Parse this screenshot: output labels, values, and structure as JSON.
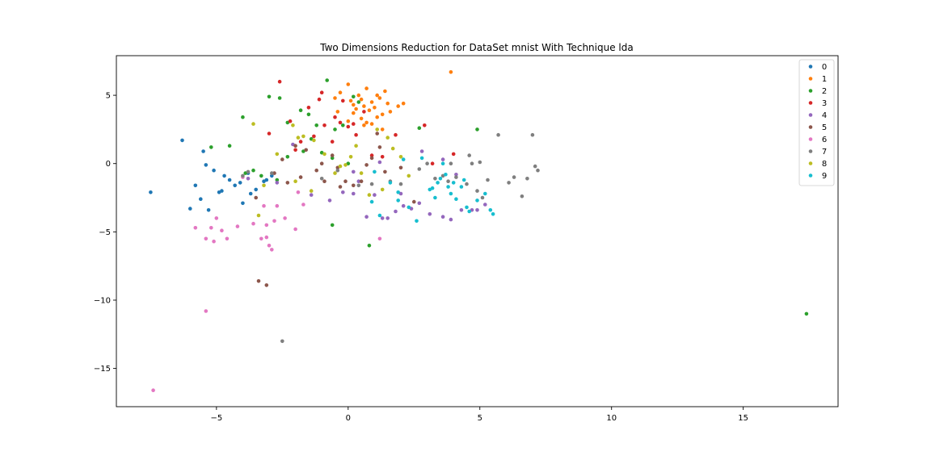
{
  "chart_data": {
    "type": "scatter",
    "title": "Two Dimensions Reduction for DataSet mnist With Technique lda",
    "xlabel": "",
    "ylabel": "",
    "xlim": [
      -8.8,
      18.6
    ],
    "ylim": [
      -17.8,
      7.9
    ],
    "xticks": [
      -5,
      0,
      5,
      10,
      15
    ],
    "yticks": [
      5,
      0,
      -5,
      -10,
      -15
    ],
    "xtick_labels": [
      "−5",
      "0",
      "5",
      "10",
      "15"
    ],
    "ytick_labels": [
      "5",
      "0",
      "−5",
      "−10",
      "−15"
    ],
    "grid": false,
    "legend_position": "top-right",
    "series": [
      {
        "name": "0",
        "color": "#1f77b4",
        "points": [
          [
            -7.5,
            -2.1
          ],
          [
            -6.3,
            1.7
          ],
          [
            -6.0,
            -3.3
          ],
          [
            -5.8,
            -1.6
          ],
          [
            -5.5,
            0.9
          ],
          [
            -5.4,
            -0.1
          ],
          [
            -5.3,
            -3.4
          ],
          [
            -5.1,
            -0.5
          ],
          [
            -4.9,
            -2.1
          ],
          [
            -4.8,
            -2.0
          ],
          [
            -4.7,
            -0.9
          ],
          [
            -4.5,
            -1.2
          ],
          [
            -4.3,
            -1.6
          ],
          [
            -4.1,
            -1.4
          ],
          [
            -4.0,
            -2.9
          ],
          [
            -3.8,
            -0.7
          ],
          [
            -3.7,
            -2.2
          ],
          [
            -3.5,
            -1.9
          ],
          [
            -3.2,
            -1.3
          ],
          [
            -3.1,
            -1.2
          ],
          [
            -2.9,
            -0.9
          ],
          [
            -5.6,
            -2.6
          ]
        ]
      },
      {
        "name": "1",
        "color": "#ff7f0e",
        "points": [
          [
            -0.5,
            4.8
          ],
          [
            -0.3,
            5.2
          ],
          [
            0.0,
            5.8
          ],
          [
            0.1,
            4.6
          ],
          [
            0.2,
            4.3
          ],
          [
            0.3,
            4.0
          ],
          [
            0.4,
            5.0
          ],
          [
            0.5,
            4.7
          ],
          [
            0.6,
            4.2
          ],
          [
            0.7,
            5.5
          ],
          [
            0.8,
            3.9
          ],
          [
            0.9,
            4.5
          ],
          [
            1.0,
            4.1
          ],
          [
            1.1,
            5.0
          ],
          [
            1.2,
            4.8
          ],
          [
            1.3,
            3.6
          ],
          [
            1.4,
            5.3
          ],
          [
            1.5,
            4.4
          ],
          [
            0.2,
            3.7
          ],
          [
            0.5,
            3.3
          ],
          [
            0.7,
            3.0
          ],
          [
            0.9,
            2.9
          ],
          [
            1.1,
            3.4
          ],
          [
            1.3,
            2.5
          ],
          [
            1.6,
            3.8
          ],
          [
            1.9,
            4.2
          ],
          [
            2.1,
            4.4
          ],
          [
            3.9,
            6.7
          ],
          [
            0.6,
            2.8
          ],
          [
            0.0,
            3.1
          ],
          [
            -0.4,
            3.8
          ]
        ]
      },
      {
        "name": "2",
        "color": "#2ca02c",
        "points": [
          [
            -4.0,
            3.4
          ],
          [
            -3.0,
            4.9
          ],
          [
            -2.6,
            4.8
          ],
          [
            -2.3,
            3.0
          ],
          [
            -1.8,
            3.9
          ],
          [
            -1.5,
            3.6
          ],
          [
            -1.2,
            2.8
          ],
          [
            -0.8,
            6.1
          ],
          [
            -0.5,
            2.5
          ],
          [
            -0.2,
            2.8
          ],
          [
            0.2,
            4.9
          ],
          [
            0.4,
            4.5
          ],
          [
            -0.6,
            0.4
          ],
          [
            -1.0,
            0.8
          ],
          [
            -1.7,
            0.9
          ],
          [
            -2.3,
            0.5
          ],
          [
            -2.7,
            -1.2
          ],
          [
            -3.3,
            -0.9
          ],
          [
            -3.6,
            -0.5
          ],
          [
            -3.9,
            -0.7
          ],
          [
            -4.5,
            1.3
          ],
          [
            -5.2,
            1.2
          ],
          [
            2.7,
            2.6
          ],
          [
            4.9,
            2.5
          ],
          [
            -0.6,
            -4.5
          ],
          [
            0.8,
            -6.0
          ],
          [
            17.4,
            -11.0
          ],
          [
            -1.4,
            1.8
          ],
          [
            0.0,
            0.0
          ]
        ]
      },
      {
        "name": "3",
        "color": "#d62728",
        "points": [
          [
            -2.6,
            6.0
          ],
          [
            -2.2,
            3.1
          ],
          [
            -1.5,
            4.1
          ],
          [
            -1.1,
            4.7
          ],
          [
            -0.9,
            2.8
          ],
          [
            -0.5,
            3.4
          ],
          [
            -0.2,
            4.6
          ],
          [
            0.0,
            2.7
          ],
          [
            0.2,
            2.9
          ],
          [
            -0.6,
            1.6
          ],
          [
            -1.3,
            2.0
          ],
          [
            -1.8,
            1.6
          ],
          [
            -2.0,
            1.0
          ],
          [
            -3.0,
            2.2
          ],
          [
            0.3,
            2.1
          ],
          [
            0.6,
            3.8
          ],
          [
            0.9,
            0.6
          ],
          [
            1.3,
            0.5
          ],
          [
            1.8,
            2.1
          ],
          [
            2.9,
            2.8
          ],
          [
            3.2,
            0.0
          ],
          [
            4.0,
            0.7
          ],
          [
            -1.0,
            5.2
          ],
          [
            -0.3,
            3.0
          ]
        ]
      },
      {
        "name": "4",
        "color": "#9467bd",
        "points": [
          [
            -3.8,
            -1.1
          ],
          [
            -2.7,
            -1.4
          ],
          [
            -2.1,
            1.4
          ],
          [
            -1.4,
            -2.3
          ],
          [
            -0.7,
            -2.7
          ],
          [
            -0.2,
            -2.1
          ],
          [
            0.2,
            -2.2
          ],
          [
            0.7,
            -3.9
          ],
          [
            1.0,
            -2.3
          ],
          [
            1.3,
            -4.0
          ],
          [
            1.5,
            -4.0
          ],
          [
            1.8,
            -3.5
          ],
          [
            2.1,
            -3.1
          ],
          [
            2.4,
            -3.3
          ],
          [
            2.7,
            -2.9
          ],
          [
            3.1,
            -3.7
          ],
          [
            3.6,
            -3.9
          ],
          [
            3.9,
            -4.1
          ],
          [
            4.3,
            -3.4
          ],
          [
            4.7,
            -3.4
          ],
          [
            4.9,
            -3.4
          ],
          [
            5.2,
            -3.0
          ],
          [
            4.1,
            -0.8
          ],
          [
            2.8,
            0.9
          ],
          [
            3.6,
            0.3
          ],
          [
            1.2,
            0.1
          ],
          [
            2.0,
            -2.2
          ],
          [
            0.4,
            -1.3
          ],
          [
            0.2,
            -0.6
          ]
        ]
      },
      {
        "name": "5",
        "color": "#8c564b",
        "points": [
          [
            -3.5,
            -2.5
          ],
          [
            -3.1,
            -8.9
          ],
          [
            -2.5,
            0.3
          ],
          [
            -2.0,
            1.3
          ],
          [
            -1.6,
            1.0
          ],
          [
            -1.2,
            -0.5
          ],
          [
            -0.9,
            -1.3
          ],
          [
            -0.6,
            0.6
          ],
          [
            -0.4,
            -0.3
          ],
          [
            -0.1,
            -1.3
          ],
          [
            0.2,
            -1.6
          ],
          [
            0.5,
            -1.3
          ],
          [
            0.9,
            0.4
          ],
          [
            1.2,
            1.2
          ],
          [
            1.4,
            -0.6
          ],
          [
            -3.4,
            -8.6
          ],
          [
            -2.8,
            -0.7
          ],
          [
            -2.3,
            -1.4
          ],
          [
            -1.8,
            -1.0
          ],
          [
            -0.3,
            -1.7
          ],
          [
            0.7,
            -0.1
          ],
          [
            2.0,
            -0.3
          ],
          [
            2.5,
            -2.8
          ],
          [
            1.1,
            2.2
          ],
          [
            -1.0,
            0.0
          ]
        ]
      },
      {
        "name": "6",
        "color": "#e377c2",
        "points": [
          [
            -5.8,
            -4.7
          ],
          [
            -5.4,
            -5.5
          ],
          [
            -5.2,
            -4.7
          ],
          [
            -5.1,
            -5.7
          ],
          [
            -4.8,
            -4.9
          ],
          [
            -4.6,
            -5.5
          ],
          [
            -4.2,
            -4.6
          ],
          [
            -3.6,
            -4.4
          ],
          [
            -3.3,
            -5.5
          ],
          [
            -3.2,
            -3.1
          ],
          [
            -3.1,
            -4.5
          ],
          [
            -3.0,
            -6.0
          ],
          [
            -2.9,
            -6.3
          ],
          [
            -2.8,
            -4.2
          ],
          [
            -2.7,
            -3.1
          ],
          [
            -2.4,
            -4.0
          ],
          [
            -2.0,
            -4.8
          ],
          [
            -1.7,
            -3.0
          ],
          [
            -1.9,
            -2.1
          ],
          [
            -5.4,
            -10.8
          ],
          [
            -7.4,
            -16.6
          ],
          [
            1.2,
            -5.5
          ],
          [
            -4.0,
            -1.0
          ],
          [
            -3.1,
            -5.4
          ],
          [
            -5.0,
            -4.0
          ]
        ]
      },
      {
        "name": "7",
        "color": "#7f7f7f",
        "points": [
          [
            -2.5,
            -13.0
          ],
          [
            -4.0,
            -0.9
          ],
          [
            -3.8,
            -0.6
          ],
          [
            -2.9,
            -0.7
          ],
          [
            -1.0,
            -1.1
          ],
          [
            -0.4,
            -0.5
          ],
          [
            0.4,
            -1.6
          ],
          [
            0.9,
            -1.5
          ],
          [
            1.6,
            -1.3
          ],
          [
            2.0,
            -1.5
          ],
          [
            2.7,
            -0.4
          ],
          [
            3.0,
            0.0
          ],
          [
            3.3,
            -1.1
          ],
          [
            3.6,
            -0.9
          ],
          [
            3.8,
            -1.3
          ],
          [
            4.1,
            -1.0
          ],
          [
            4.5,
            -1.5
          ],
          [
            4.7,
            0.0
          ],
          [
            4.9,
            -2.0
          ],
          [
            5.1,
            -2.5
          ],
          [
            5.3,
            -1.2
          ],
          [
            5.7,
            2.1
          ],
          [
            6.1,
            -1.4
          ],
          [
            6.3,
            -1.0
          ],
          [
            6.6,
            -2.4
          ],
          [
            6.8,
            -1.1
          ],
          [
            7.0,
            2.1
          ],
          [
            7.1,
            -0.2
          ],
          [
            7.2,
            -0.5
          ],
          [
            3.9,
            0.0
          ],
          [
            4.6,
            0.6
          ],
          [
            5.0,
            0.1
          ]
        ]
      },
      {
        "name": "8",
        "color": "#bcbd22",
        "points": [
          [
            -3.6,
            2.9
          ],
          [
            -3.4,
            -3.8
          ],
          [
            -2.7,
            0.7
          ],
          [
            -2.1,
            2.8
          ],
          [
            -1.7,
            2.0
          ],
          [
            -1.3,
            1.7
          ],
          [
            -0.9,
            0.7
          ],
          [
            -0.5,
            -0.7
          ],
          [
            -0.1,
            -0.1
          ],
          [
            0.3,
            1.3
          ],
          [
            0.5,
            -0.7
          ],
          [
            0.8,
            -2.3
          ],
          [
            1.1,
            2.5
          ],
          [
            1.3,
            -1.9
          ],
          [
            1.7,
            1.1
          ],
          [
            2.0,
            0.5
          ],
          [
            2.3,
            -0.9
          ],
          [
            -1.4,
            -2.0
          ],
          [
            -2.0,
            -1.3
          ],
          [
            -3.2,
            -1.6
          ],
          [
            -0.3,
            -0.2
          ],
          [
            0.1,
            0.5
          ],
          [
            1.5,
            1.9
          ],
          [
            -1.9,
            1.9
          ]
        ]
      },
      {
        "name": "9",
        "color": "#17becf",
        "points": [
          [
            0.9,
            -2.8
          ],
          [
            1.0,
            -0.6
          ],
          [
            1.2,
            -3.8
          ],
          [
            1.6,
            -1.4
          ],
          [
            1.9,
            -2.1
          ],
          [
            2.1,
            0.3
          ],
          [
            2.3,
            -3.2
          ],
          [
            2.6,
            -4.2
          ],
          [
            2.8,
            0.4
          ],
          [
            3.1,
            -1.9
          ],
          [
            3.3,
            -2.5
          ],
          [
            3.4,
            -1.4
          ],
          [
            3.5,
            -1.1
          ],
          [
            3.6,
            0.0
          ],
          [
            3.7,
            -0.8
          ],
          [
            3.8,
            -1.7
          ],
          [
            3.9,
            -2.2
          ],
          [
            4.0,
            -1.4
          ],
          [
            4.1,
            -2.6
          ],
          [
            4.3,
            -1.7
          ],
          [
            4.4,
            -1.2
          ],
          [
            4.5,
            -3.2
          ],
          [
            4.6,
            -3.5
          ],
          [
            4.9,
            -2.7
          ],
          [
            5.2,
            -2.2
          ],
          [
            5.4,
            -3.4
          ],
          [
            5.5,
            -3.7
          ],
          [
            3.2,
            -1.8
          ],
          [
            1.9,
            -2.7
          ]
        ]
      }
    ]
  }
}
